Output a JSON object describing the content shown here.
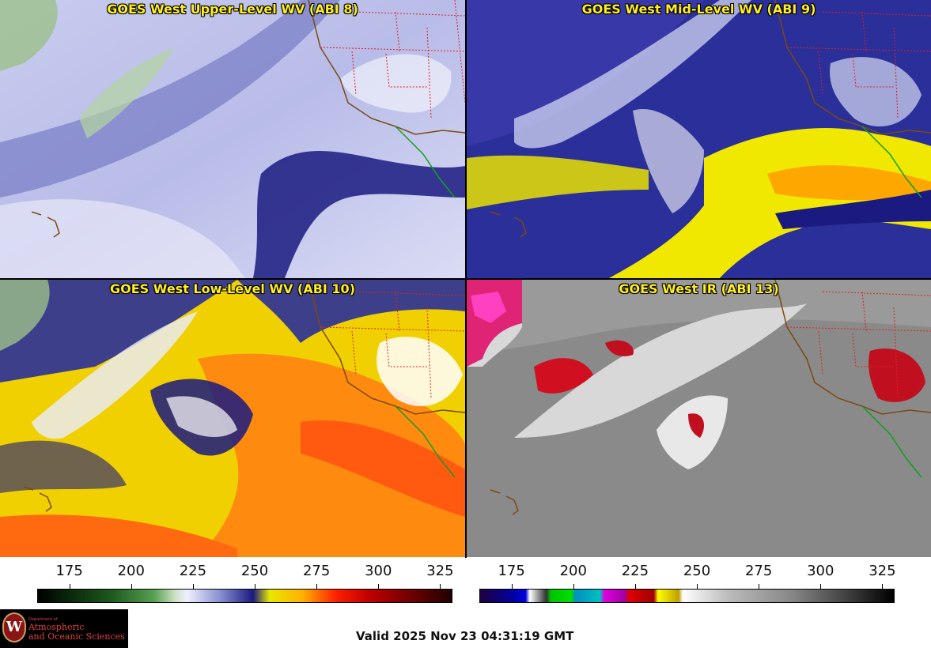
{
  "panels": [
    {
      "title": "GOES West Upper-Level WV (ABI 8)"
    },
    {
      "title": "GOES West Mid-Level WV (ABI 9)"
    },
    {
      "title": "GOES West Low-Level WV (ABI 10)"
    },
    {
      "title": "GOES West IR (ABI 13)"
    }
  ],
  "colorbars": [
    {
      "ticks": [
        "175",
        "200",
        "225",
        "250",
        "275",
        "300",
        "325"
      ],
      "range": [
        162,
        330
      ],
      "tick_values": [
        175,
        200,
        225,
        250,
        275,
        300,
        325
      ]
    },
    {
      "ticks": [
        "175",
        "200",
        "225",
        "250",
        "275",
        "300",
        "325"
      ],
      "range": [
        162,
        330
      ],
      "tick_values": [
        175,
        200,
        225,
        250,
        275,
        300,
        325
      ]
    }
  ],
  "logo": {
    "dept": "Department of",
    "line1": "Atmospheric",
    "line2": "and Oceanic Sciences",
    "seal_letter": "W"
  },
  "valid_time": "Valid 2025 Nov 23 04:31:19 GMT",
  "colors": {
    "title_text": "#ffee22",
    "coastline": "#7a4a10",
    "state_borders": "#e02020",
    "mexico_coast": "#10a020"
  }
}
